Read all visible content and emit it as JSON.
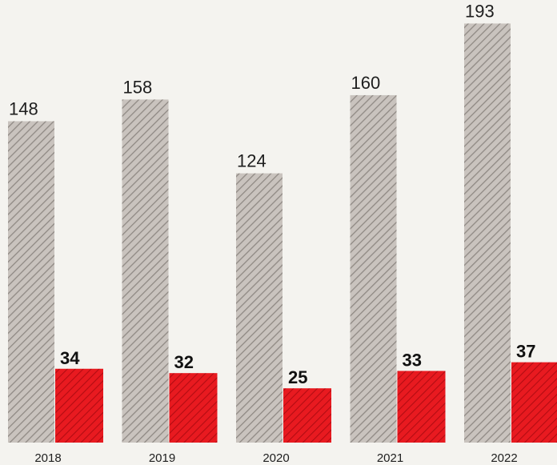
{
  "chart_data": {
    "type": "bar",
    "categories": [
      "2018",
      "2019",
      "2020",
      "2021",
      "2022"
    ],
    "series": [
      {
        "values": [
          148,
          158,
          124,
          160,
          193
        ],
        "color": "#b8b2ad",
        "pattern": "diagonal-hatch"
      },
      {
        "values": [
          34,
          32,
          25,
          33,
          37
        ],
        "color": "#e4151c",
        "pattern": "diagonal-hatch"
      }
    ],
    "title": "",
    "xlabel": "",
    "ylabel": "",
    "ylim": [
      0,
      193
    ],
    "grid": false,
    "legend": "none"
  }
}
